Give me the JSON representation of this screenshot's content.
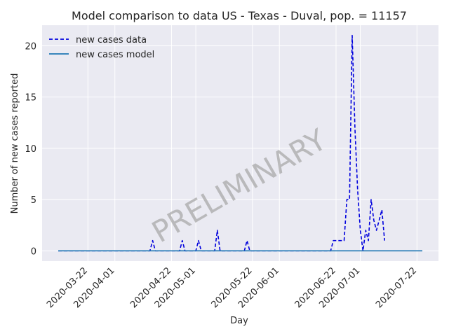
{
  "chart_data": {
    "type": "line",
    "title": "Model comparison to data US - Texas - Duval, pop. = 11157",
    "xlabel": "Day",
    "ylabel": "Number of new cases reported",
    "x_start": "2020-03-11",
    "x_end": "2020-07-24",
    "ylim": [
      -1,
      22
    ],
    "yticks": [
      0,
      5,
      10,
      15,
      20
    ],
    "xticks": [
      "2020-03-22",
      "2020-04-01",
      "2020-04-22",
      "2020-05-01",
      "2020-05-22",
      "2020-06-01",
      "2020-06-22",
      "2020-07-01",
      "2020-07-22"
    ],
    "grid": true,
    "legend_position": "top-left",
    "watermark": "PRELIMINARY",
    "series": [
      {
        "name": "new cases data",
        "style": "dashed",
        "color": "#0000dd",
        "points": [
          [
            "2020-03-11",
            0
          ],
          [
            "2020-04-14",
            0
          ],
          [
            "2020-04-15",
            1
          ],
          [
            "2020-04-16",
            0
          ],
          [
            "2020-04-25",
            0
          ],
          [
            "2020-04-26",
            1
          ],
          [
            "2020-04-27",
            0
          ],
          [
            "2020-05-01",
            0
          ],
          [
            "2020-05-02",
            1
          ],
          [
            "2020-05-03",
            0
          ],
          [
            "2020-05-08",
            0
          ],
          [
            "2020-05-09",
            2
          ],
          [
            "2020-05-10",
            0
          ],
          [
            "2020-05-19",
            0
          ],
          [
            "2020-05-20",
            1
          ],
          [
            "2020-05-21",
            0
          ],
          [
            "2020-06-20",
            0
          ],
          [
            "2020-06-21",
            1
          ],
          [
            "2020-06-25",
            1
          ],
          [
            "2020-06-26",
            5
          ],
          [
            "2020-06-27",
            5
          ],
          [
            "2020-06-28",
            21
          ],
          [
            "2020-06-29",
            12
          ],
          [
            "2020-06-30",
            6
          ],
          [
            "2020-07-01",
            2
          ],
          [
            "2020-07-02",
            0
          ],
          [
            "2020-07-03",
            2
          ],
          [
            "2020-07-04",
            1
          ],
          [
            "2020-07-05",
            5
          ],
          [
            "2020-07-06",
            3
          ],
          [
            "2020-07-07",
            2
          ],
          [
            "2020-07-08",
            3
          ],
          [
            "2020-07-09",
            4
          ],
          [
            "2020-07-10",
            1
          ]
        ]
      },
      {
        "name": "new cases model",
        "style": "solid",
        "color": "#1f77b4",
        "points": [
          [
            "2020-03-11",
            0
          ],
          [
            "2020-07-24",
            0
          ]
        ]
      }
    ]
  }
}
